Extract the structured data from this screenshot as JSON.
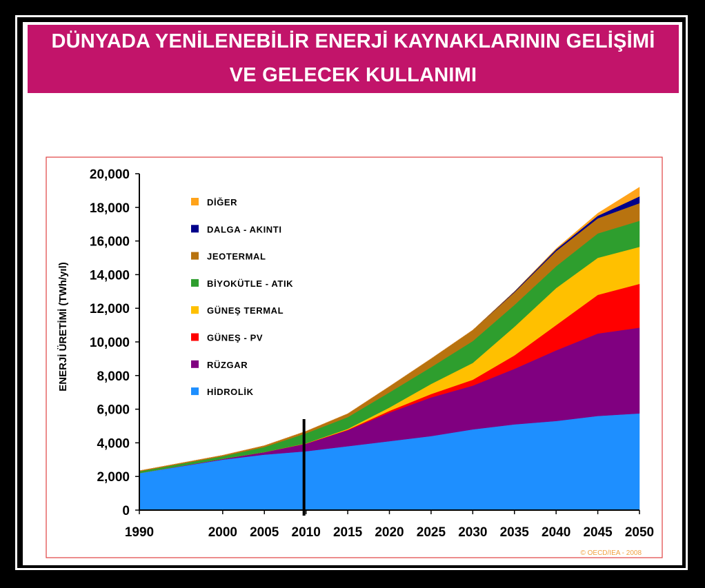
{
  "title": {
    "line1": "DÜNYADA YENİLENEBİLİR ENERJİ KAYNAKLARININ GELİŞİMİ",
    "line2": "VE GELECEK KULLANIMI"
  },
  "colors": {
    "title_band": "#c2146a",
    "plot_border": "#e04040",
    "marker_line": "#000000"
  },
  "chart_data": {
    "type": "area",
    "stacked": true,
    "ylabel": "ENERJİ ÜRETİMİ (TWh/yıl)",
    "xlabel": "",
    "x": [
      1990,
      2000,
      2005,
      2010,
      2015,
      2020,
      2025,
      2030,
      2035,
      2040,
      2045,
      2050
    ],
    "x_ticks": [
      "1990",
      "2000",
      "2005",
      "2010",
      "2015",
      "2020",
      "2025",
      "2030",
      "2035",
      "2040",
      "2045",
      "2050"
    ],
    "ylim": [
      0,
      20000
    ],
    "y_ticks": [
      "0",
      "2,000",
      "4,000",
      "6,000",
      "8,000",
      "10,000",
      "12,000",
      "14,000",
      "16,000",
      "18,000",
      "20,000"
    ],
    "marker_year": 2010,
    "legend_position": "top-left",
    "series": [
      {
        "name": "HİDROLİK",
        "color": "#1e8fff",
        "values": [
          2200,
          3000,
          3300,
          3500,
          3800,
          4100,
          4400,
          4800,
          5100,
          5300,
          5600,
          5750
        ]
      },
      {
        "name": "RÜZGAR",
        "color": "#800080",
        "values": [
          0,
          50,
          150,
          450,
          950,
          1700,
          2300,
          2600,
          3300,
          4200,
          4900,
          5100
        ]
      },
      {
        "name": "GÜNEŞ - PV",
        "color": "#ff0000",
        "values": [
          0,
          0,
          0,
          10,
          30,
          100,
          200,
          350,
          800,
          1500,
          2300,
          2600
        ]
      },
      {
        "name": "GÜNEŞ TERMAL",
        "color": "#ffc000",
        "values": [
          0,
          0,
          0,
          10,
          50,
          200,
          600,
          1000,
          1700,
          2200,
          2200,
          2200
        ]
      },
      {
        "name": "BİYOKÜTLE - ATIK",
        "color": "#2e9e2e",
        "values": [
          100,
          150,
          300,
          600,
          700,
          900,
          1000,
          1300,
          1300,
          1300,
          1450,
          1550
        ]
      },
      {
        "name": "JEOTERMAL",
        "color": "#b8730f",
        "values": [
          40,
          60,
          80,
          120,
          200,
          350,
          500,
          650,
          750,
          900,
          900,
          1050
        ]
      },
      {
        "name": "DALGA - AKINTI",
        "color": "#00008b",
        "values": [
          0,
          0,
          0,
          0,
          0,
          0,
          0,
          0,
          50,
          100,
          150,
          400
        ]
      },
      {
        "name": "DİĞER",
        "color": "#ffa31a",
        "values": [
          0,
          0,
          0,
          0,
          0,
          0,
          0,
          0,
          0,
          50,
          150,
          550
        ]
      }
    ],
    "legend_order": [
      "DİĞER",
      "DALGA - AKINTI",
      "JEOTERMAL",
      "BİYOKÜTLE - ATIK",
      "GÜNEŞ TERMAL",
      "GÜNEŞ - PV",
      "RÜZGAR",
      "HİDROLİK"
    ],
    "source": "© OECD/IEA - 2008"
  }
}
